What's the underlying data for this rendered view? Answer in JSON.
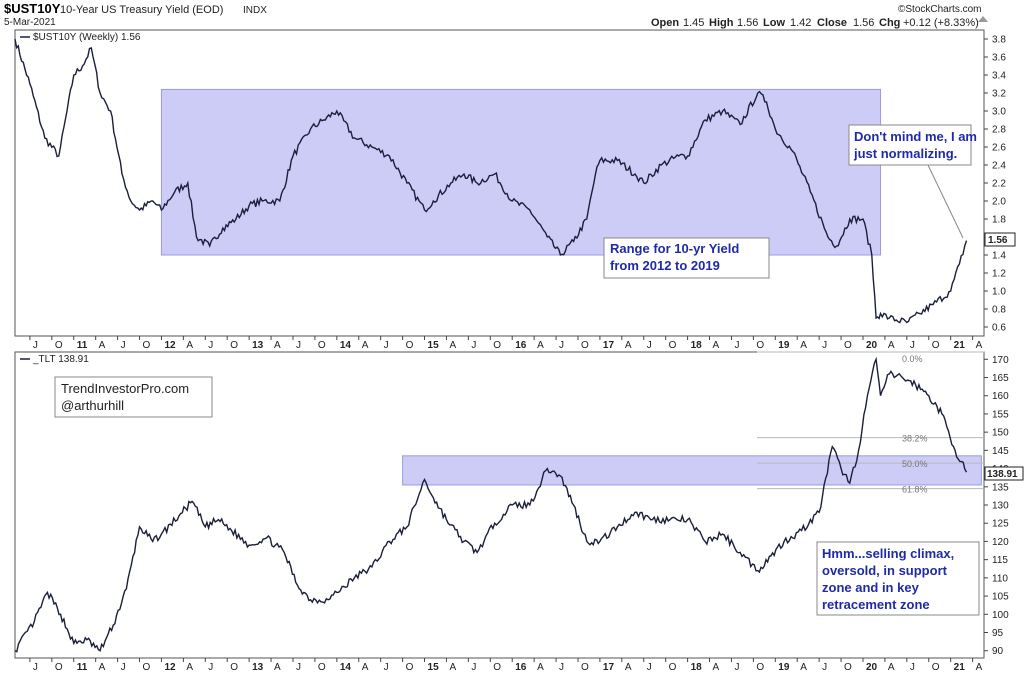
{
  "header": {
    "symbol": "$UST10Y",
    "name": "10-Year US Treasury Yield (EOD)",
    "exchange": "INDX",
    "date": "5-Mar-2021",
    "ohlc": {
      "open_label": "Open",
      "open": "1.45",
      "high_label": "High",
      "high": "1.56",
      "low_label": "Low",
      "low": "1.42",
      "close_label": "Close",
      "close": "1.56",
      "chg_label": "Chg",
      "chg": "+0.12 (+8.33%)"
    },
    "brand": "©StockCharts.com"
  },
  "colors": {
    "line": "#1a1f3a",
    "zone_fill": "#ccccf7",
    "zone_stroke": "#9a9ae8",
    "annotation_text": "#1f2aa8",
    "price_tag_bg": "#ffffff"
  },
  "chart_data": [
    {
      "type": "line",
      "legend": "$UST10Y (Weekly) 1.56",
      "last_value_tag": "1.56",
      "ylim": [
        0.5,
        3.9
      ],
      "yticks": [
        "3.8",
        "3.6",
        "3.4",
        "3.2",
        "3.0",
        "2.8",
        "2.6",
        "2.4",
        "2.2",
        "2.0",
        "1.8",
        "1.6",
        "1.4",
        "1.2",
        "1.0",
        "0.8",
        "0.6"
      ],
      "x_tick_labels": [
        "J",
        "O",
        "11",
        "A",
        "J",
        "O",
        "12",
        "A",
        "J",
        "O",
        "13",
        "A",
        "J",
        "O",
        "14",
        "A",
        "J",
        "O",
        "15",
        "A",
        "J",
        "O",
        "16",
        "A",
        "J",
        "O",
        "17",
        "A",
        "J",
        "O",
        "18",
        "A",
        "J",
        "O",
        "19",
        "A",
        "J",
        "O",
        "20",
        "A",
        "J",
        "O",
        "21",
        "A"
      ],
      "zone": {
        "x_from": 2012.0,
        "x_to": 2020.2,
        "y_from": 1.4,
        "y_to": 3.24
      },
      "annotations": [
        {
          "lines": [
            "Range for 10-yr Yield",
            "from 2012 to 2019"
          ]
        },
        {
          "lines": [
            "Don't mind me, I am",
            "just normalizing."
          ]
        }
      ],
      "series": [
        {
          "x": [
            2010.33,
            2010.5,
            2010.67,
            2010.83,
            2011.0,
            2011.1,
            2011.2,
            2011.3,
            2011.42,
            2011.55,
            2011.65,
            2011.75,
            2011.9,
            2012.0,
            2012.15,
            2012.3,
            2012.4,
            2012.55,
            2012.7,
            2012.85,
            2013.0,
            2013.15,
            2013.35,
            2013.5,
            2013.7,
            2013.85,
            2014.0,
            2014.2,
            2014.4,
            2014.6,
            2014.8,
            2015.0,
            2015.1,
            2015.3,
            2015.45,
            2015.6,
            2015.8,
            2016.0,
            2016.2,
            2016.4,
            2016.55,
            2016.7,
            2016.85,
            2016.95,
            2017.0,
            2017.2,
            2017.4,
            2017.5,
            2017.7,
            2017.9,
            2018.0,
            2018.2,
            2018.4,
            2018.6,
            2018.8,
            2018.9,
            2019.0,
            2019.2,
            2019.4,
            2019.6,
            2019.7,
            2019.85,
            2020.0,
            2020.1,
            2020.15,
            2020.2,
            2020.3,
            2020.5,
            2020.65,
            2020.8,
            2021.0,
            2021.1,
            2021.18
          ],
          "y": [
            3.8,
            3.3,
            2.7,
            2.5,
            3.4,
            3.5,
            3.7,
            3.2,
            3.0,
            2.3,
            2.0,
            1.9,
            2.0,
            1.9,
            2.1,
            2.2,
            1.6,
            1.5,
            1.7,
            1.8,
            1.95,
            2.0,
            2.0,
            2.5,
            2.8,
            2.9,
            3.0,
            2.7,
            2.6,
            2.5,
            2.2,
            1.9,
            2.0,
            2.2,
            2.3,
            2.2,
            2.3,
            2.0,
            1.9,
            1.6,
            1.4,
            1.55,
            1.8,
            2.3,
            2.45,
            2.45,
            2.3,
            2.2,
            2.4,
            2.5,
            2.5,
            2.9,
            3.0,
            2.85,
            3.2,
            3.1,
            2.8,
            2.55,
            2.1,
            1.6,
            1.5,
            1.8,
            1.8,
            1.4,
            0.7,
            0.75,
            0.7,
            0.65,
            0.75,
            0.85,
            1.0,
            1.3,
            1.56
          ]
        }
      ]
    },
    {
      "type": "line",
      "legend": "_TLT 138.91",
      "last_value_tag": "138.91",
      "ylim": [
        88,
        172
      ],
      "yticks": [
        "170",
        "165",
        "160",
        "155",
        "150",
        "145",
        "140",
        "135",
        "130",
        "125",
        "120",
        "115",
        "110",
        "105",
        "100",
        "95",
        "90"
      ],
      "x_tick_labels": [
        "J",
        "O",
        "11",
        "A",
        "J",
        "O",
        "12",
        "A",
        "J",
        "O",
        "13",
        "A",
        "J",
        "O",
        "14",
        "A",
        "J",
        "O",
        "15",
        "A",
        "J",
        "O",
        "16",
        "A",
        "J",
        "O",
        "17",
        "A",
        "J",
        "O",
        "18",
        "A",
        "J",
        "O",
        "19",
        "A",
        "J",
        "O",
        "20",
        "A",
        "J",
        "O",
        "21",
        "A"
      ],
      "zone": {
        "x_from": 2014.75,
        "x_to": 2021.35,
        "y_from": 135.5,
        "y_to": 143.5
      },
      "fib_labels": [
        {
          "label": "0.0%",
          "value": 172
        },
        {
          "label": "38.2%",
          "value": 148.5
        },
        {
          "label": "50.0%",
          "value": 141.5
        },
        {
          "label": "61.8%",
          "value": 134.5
        }
      ],
      "credits": [
        "TrendInvestorPro.com",
        "@arthurhill"
      ],
      "annotations": [
        {
          "lines": [
            "Hmm...selling climax,",
            "oversold, in support",
            "zone and in key",
            "retracement zone"
          ]
        }
      ],
      "series": [
        {
          "x": [
            2010.33,
            2010.55,
            2010.7,
            2010.85,
            2011.0,
            2011.15,
            2011.3,
            2011.45,
            2011.6,
            2011.75,
            2011.9,
            2012.0,
            2012.2,
            2012.35,
            2012.5,
            2012.65,
            2012.8,
            2013.0,
            2013.2,
            2013.4,
            2013.55,
            2013.7,
            2013.9,
            2014.0,
            2014.2,
            2014.4,
            2014.6,
            2014.8,
            2015.0,
            2015.1,
            2015.25,
            2015.45,
            2015.6,
            2015.8,
            2016.0,
            2016.2,
            2016.4,
            2016.55,
            2016.7,
            2016.85,
            2017.0,
            2017.2,
            2017.4,
            2017.6,
            2017.8,
            2018.0,
            2018.2,
            2018.4,
            2018.6,
            2018.8,
            2018.95,
            2019.1,
            2019.3,
            2019.5,
            2019.65,
            2019.75,
            2019.85,
            2019.95,
            2020.05,
            2020.15,
            2020.2,
            2020.3,
            2020.45,
            2020.6,
            2020.75,
            2020.9,
            2021.05,
            2021.18
          ],
          "y": [
            90,
            98,
            106,
            100,
            92,
            93,
            90,
            97,
            107,
            124,
            120,
            122,
            127,
            131,
            124,
            126,
            123,
            119,
            121,
            117,
            108,
            104,
            104,
            106,
            110,
            113,
            120,
            124,
            137,
            132,
            126,
            120,
            117,
            125,
            130,
            130,
            140,
            138,
            130,
            120,
            120,
            124,
            128,
            126,
            126,
            126,
            120,
            122,
            117,
            112,
            116,
            120,
            123,
            128,
            146,
            140,
            136,
            145,
            160,
            170,
            160,
            166,
            165,
            163,
            160,
            155,
            145,
            139
          ]
        }
      ]
    }
  ]
}
